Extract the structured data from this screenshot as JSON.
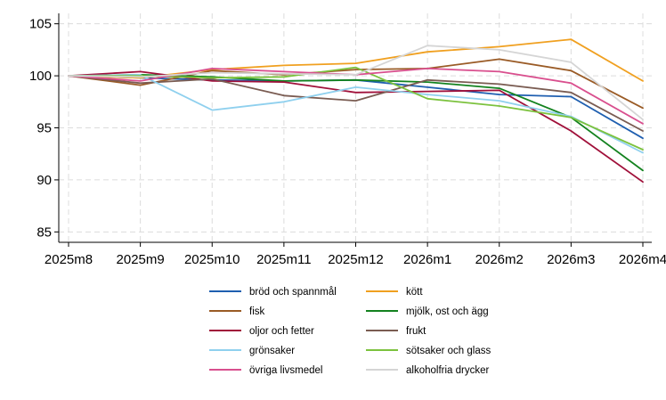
{
  "chart_data": {
    "type": "line",
    "title": "",
    "xlabel": "",
    "ylabel": "",
    "categories": [
      "2025m8",
      "2025m9",
      "2025m10",
      "2025m11",
      "2025m12",
      "2026m1",
      "2026m2",
      "2026m3",
      "2026m4"
    ],
    "ylim": [
      84,
      106
    ],
    "yticks": [
      85,
      90,
      95,
      100,
      105
    ],
    "grid": "horizontal dashed",
    "legend_position": "bottom",
    "series": [
      {
        "name": "bröd och spannmål",
        "color": "#1f5fb0",
        "values": [
          100,
          99.8,
          99.6,
          99.5,
          99.6,
          98.9,
          98.2,
          98.0,
          94.0
        ]
      },
      {
        "name": "kött",
        "color": "#f0a020",
        "values": [
          100,
          99.8,
          100.6,
          101.0,
          101.2,
          102.3,
          102.8,
          103.5,
          99.5
        ]
      },
      {
        "name": "fisk",
        "color": "#9a5b26",
        "values": [
          100,
          99.1,
          100.5,
          100.1,
          100.6,
          100.7,
          101.6,
          100.5,
          96.9
        ]
      },
      {
        "name": "mjölk, ost och ägg",
        "color": "#13821f",
        "values": [
          100,
          100.1,
          99.9,
          99.5,
          99.6,
          99.4,
          98.8,
          96.0,
          90.9
        ]
      },
      {
        "name": "oljor och fetter",
        "color": "#a0103a",
        "values": [
          100,
          100.4,
          99.5,
          99.4,
          98.4,
          98.5,
          98.6,
          94.7,
          89.8
        ]
      },
      {
        "name": "frukt",
        "color": "#7a5c52",
        "values": [
          100,
          99.3,
          99.7,
          98.1,
          97.6,
          99.6,
          99.2,
          98.4,
          94.7
        ]
      },
      {
        "name": "grönsaker",
        "color": "#8fd0ee",
        "values": [
          100,
          100.1,
          96.7,
          97.5,
          98.9,
          98.2,
          97.6,
          96.1,
          92.6
        ]
      },
      {
        "name": "sötsaker och glass",
        "color": "#7cc23e",
        "values": [
          100,
          100.0,
          99.8,
          99.9,
          100.8,
          97.8,
          97.1,
          96.0,
          92.9
        ]
      },
      {
        "name": "övriga livsmedel",
        "color": "#d94f8e",
        "values": [
          100,
          99.5,
          100.7,
          100.4,
          100.1,
          100.7,
          100.4,
          99.3,
          95.4
        ]
      },
      {
        "name": "alkoholfria drycker",
        "color": "#d5d5d5",
        "values": [
          100,
          99.9,
          100.3,
          100.2,
          100.1,
          102.9,
          102.5,
          101.3,
          95.8
        ]
      }
    ]
  }
}
